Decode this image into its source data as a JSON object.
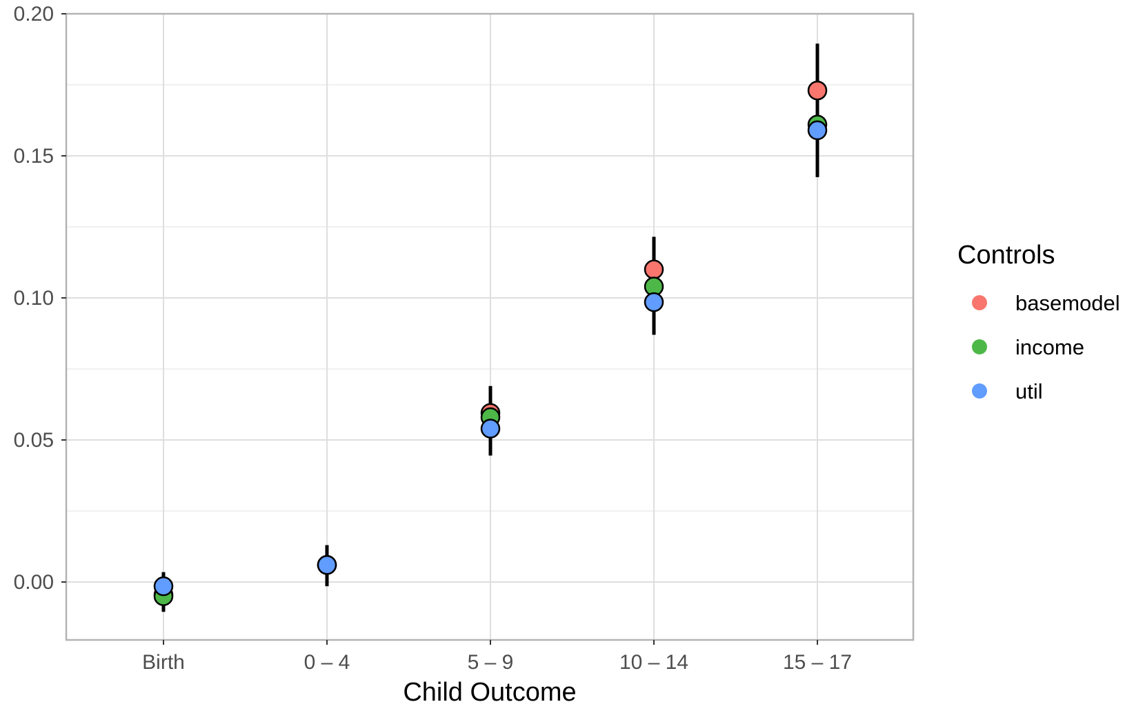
{
  "chart_data": {
    "type": "scatter",
    "xlabel": "Child Outcome",
    "ylabel": "",
    "categories": [
      "Birth",
      "0 – 4",
      "5 – 9",
      "10 – 14",
      "15 – 17"
    ],
    "ylim": [
      -0.02,
      0.2
    ],
    "yticks": [
      0.0,
      0.05,
      0.1,
      0.15,
      0.2
    ],
    "ytick_labels": [
      "0.00",
      "0.05",
      "0.10",
      "0.15",
      "0.20"
    ],
    "grid": true,
    "error_bars": [
      {
        "category": "Birth",
        "low": -0.0105,
        "high": 0.0035
      },
      {
        "category": "0 – 4",
        "low": -0.0015,
        "high": 0.013
      },
      {
        "category": "5 – 9",
        "low": 0.0445,
        "high": 0.069
      },
      {
        "category": "10 – 14",
        "low": 0.087,
        "high": 0.1215
      },
      {
        "category": "15 – 17",
        "low": 0.1425,
        "high": 0.1895
      }
    ],
    "series": [
      {
        "name": "basemodel",
        "color": "#F8766D",
        "values": [
          -0.0045,
          0.006,
          0.0595,
          0.11,
          0.173
        ]
      },
      {
        "name": "income",
        "color": "#4DB848",
        "values": [
          -0.005,
          0.006,
          0.058,
          0.104,
          0.161
        ]
      },
      {
        "name": "util",
        "color": "#619CFF",
        "values": [
          -0.0015,
          0.006,
          0.054,
          0.0985,
          0.159
        ]
      }
    ],
    "legend": {
      "title": "Controls",
      "position": "right"
    }
  }
}
